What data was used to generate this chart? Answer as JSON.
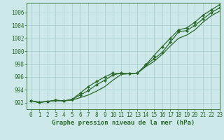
{
  "title": "Graphe pression niveau de la mer (hPa)",
  "bg_color": "#cce8e8",
  "line_color": "#2d6a2d",
  "grid_color": "#b8d8d8",
  "xlim": [
    -0.5,
    23
  ],
  "ylim": [
    991.0,
    1007.5
  ],
  "yticks": [
    992,
    994,
    996,
    998,
    1000,
    1002,
    1004,
    1006
  ],
  "xticks": [
    0,
    1,
    2,
    3,
    4,
    5,
    6,
    7,
    8,
    9,
    10,
    11,
    12,
    13,
    14,
    15,
    16,
    17,
    18,
    19,
    20,
    21,
    22,
    23
  ],
  "hours": [
    0,
    1,
    2,
    3,
    4,
    5,
    6,
    7,
    8,
    9,
    10,
    11,
    12,
    13,
    14,
    15,
    16,
    17,
    18,
    19,
    20,
    21,
    22,
    23
  ],
  "series1": [
    992.3,
    992.1,
    992.2,
    992.4,
    992.3,
    992.5,
    993.2,
    993.9,
    994.8,
    995.5,
    996.3,
    996.6,
    996.5,
    996.6,
    997.8,
    998.8,
    999.8,
    1001.4,
    1003.0,
    1003.2,
    1004.0,
    1005.0,
    1006.0,
    1006.7
  ],
  "series2": [
    992.3,
    992.0,
    992.2,
    992.3,
    992.3,
    992.4,
    992.8,
    993.2,
    993.8,
    994.5,
    995.5,
    996.4,
    996.5,
    996.6,
    997.6,
    998.4,
    999.5,
    1000.8,
    1002.0,
    1002.5,
    1003.3,
    1004.5,
    1005.5,
    1006.2
  ],
  "series3": [
    992.3,
    992.1,
    992.2,
    992.4,
    992.3,
    992.5,
    993.5,
    994.5,
    995.3,
    996.0,
    996.6,
    996.5,
    996.5,
    996.6,
    997.9,
    999.3,
    1000.7,
    1002.0,
    1003.3,
    1003.6,
    1004.5,
    1005.6,
    1006.4,
    1007.2
  ],
  "tick_fontsize": 5.5,
  "title_fontsize": 6.5
}
